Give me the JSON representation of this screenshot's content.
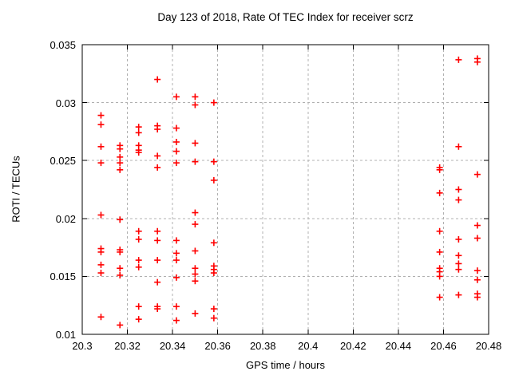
{
  "chart_data": {
    "type": "scatter",
    "title": "Day 123 of 2018, Rate Of TEC Index for receiver scrz",
    "xlabel": "GPS time / hours",
    "ylabel": "ROTI / TECUs",
    "xlim": [
      20.3,
      20.48
    ],
    "ylim": [
      0.01,
      0.035
    ],
    "xtick_values": [
      20.3,
      20.32,
      20.34,
      20.36,
      20.38,
      20.4,
      20.42,
      20.44,
      20.46,
      20.48
    ],
    "xtick_labels": [
      "20.3",
      "20.32",
      "20.34",
      "20.36",
      "20.38",
      "20.4",
      "20.42",
      "20.44",
      "20.46",
      "20.48"
    ],
    "ytick_values": [
      0.01,
      0.015,
      0.02,
      0.025,
      0.03,
      0.035
    ],
    "ytick_labels": [
      "0.01",
      "0.015",
      "0.02",
      "0.025",
      "0.03",
      "0.035"
    ],
    "grid": true,
    "legend": false,
    "marker": {
      "shape": "plus",
      "color": "#ff0000",
      "half_size": 4,
      "stroke_width": 1.6
    },
    "grid_color": "#b0b0b0",
    "border_color": "#000000",
    "series": [
      {
        "name": "ROTI",
        "points": [
          [
            20.3083,
            0.0289
          ],
          [
            20.3083,
            0.0281
          ],
          [
            20.3083,
            0.0262
          ],
          [
            20.3083,
            0.0248
          ],
          [
            20.3083,
            0.0203
          ],
          [
            20.3083,
            0.0174
          ],
          [
            20.3083,
            0.0171
          ],
          [
            20.3083,
            0.016
          ],
          [
            20.3083,
            0.0153
          ],
          [
            20.3083,
            0.0115
          ],
          [
            20.3167,
            0.0263
          ],
          [
            20.3167,
            0.026
          ],
          [
            20.3167,
            0.0253
          ],
          [
            20.3167,
            0.0248
          ],
          [
            20.3167,
            0.0242
          ],
          [
            20.3167,
            0.0199
          ],
          [
            20.3167,
            0.0173
          ],
          [
            20.3167,
            0.0171
          ],
          [
            20.3167,
            0.0157
          ],
          [
            20.3167,
            0.0151
          ],
          [
            20.3167,
            0.0108
          ],
          [
            20.325,
            0.0279
          ],
          [
            20.325,
            0.0274
          ],
          [
            20.325,
            0.0263
          ],
          [
            20.325,
            0.0259
          ],
          [
            20.325,
            0.0257
          ],
          [
            20.325,
            0.0189
          ],
          [
            20.325,
            0.0182
          ],
          [
            20.325,
            0.0164
          ],
          [
            20.325,
            0.0158
          ],
          [
            20.325,
            0.0124
          ],
          [
            20.325,
            0.0113
          ],
          [
            20.3333,
            0.032
          ],
          [
            20.3333,
            0.028
          ],
          [
            20.3333,
            0.0277
          ],
          [
            20.3333,
            0.0254
          ],
          [
            20.3333,
            0.0244
          ],
          [
            20.3333,
            0.0189
          ],
          [
            20.3333,
            0.0181
          ],
          [
            20.3333,
            0.0164
          ],
          [
            20.3333,
            0.0145
          ],
          [
            20.3333,
            0.0124
          ],
          [
            20.3333,
            0.0122
          ],
          [
            20.3417,
            0.0305
          ],
          [
            20.3417,
            0.0278
          ],
          [
            20.3417,
            0.0266
          ],
          [
            20.3417,
            0.0258
          ],
          [
            20.3417,
            0.0248
          ],
          [
            20.3417,
            0.0181
          ],
          [
            20.3417,
            0.017
          ],
          [
            20.3417,
            0.0164
          ],
          [
            20.3417,
            0.0149
          ],
          [
            20.3417,
            0.0124
          ],
          [
            20.3417,
            0.0112
          ],
          [
            20.35,
            0.0305
          ],
          [
            20.35,
            0.0298
          ],
          [
            20.35,
            0.0265
          ],
          [
            20.35,
            0.0249
          ],
          [
            20.35,
            0.0205
          ],
          [
            20.35,
            0.0195
          ],
          [
            20.35,
            0.0172
          ],
          [
            20.35,
            0.0157
          ],
          [
            20.35,
            0.0152
          ],
          [
            20.35,
            0.0146
          ],
          [
            20.35,
            0.0118
          ],
          [
            20.3583,
            0.03
          ],
          [
            20.3583,
            0.0249
          ],
          [
            20.3583,
            0.0233
          ],
          [
            20.3583,
            0.0179
          ],
          [
            20.3583,
            0.0159
          ],
          [
            20.3583,
            0.0156
          ],
          [
            20.3583,
            0.0153
          ],
          [
            20.3583,
            0.0122
          ],
          [
            20.3583,
            0.0114
          ],
          [
            20.4583,
            0.0244
          ],
          [
            20.4583,
            0.0242
          ],
          [
            20.4583,
            0.0222
          ],
          [
            20.4583,
            0.0189
          ],
          [
            20.4583,
            0.0171
          ],
          [
            20.4583,
            0.0157
          ],
          [
            20.4583,
            0.0154
          ],
          [
            20.4583,
            0.015
          ],
          [
            20.4583,
            0.0132
          ],
          [
            20.4667,
            0.0337
          ],
          [
            20.4667,
            0.0262
          ],
          [
            20.4667,
            0.0225
          ],
          [
            20.4667,
            0.0216
          ],
          [
            20.4667,
            0.0182
          ],
          [
            20.4667,
            0.0168
          ],
          [
            20.4667,
            0.0161
          ],
          [
            20.4667,
            0.0156
          ],
          [
            20.4667,
            0.0134
          ],
          [
            20.475,
            0.0338
          ],
          [
            20.475,
            0.0335
          ],
          [
            20.475,
            0.0238
          ],
          [
            20.475,
            0.0194
          ],
          [
            20.475,
            0.0183
          ],
          [
            20.475,
            0.0155
          ],
          [
            20.475,
            0.0147
          ],
          [
            20.475,
            0.0135
          ],
          [
            20.475,
            0.0132
          ]
        ]
      }
    ]
  }
}
